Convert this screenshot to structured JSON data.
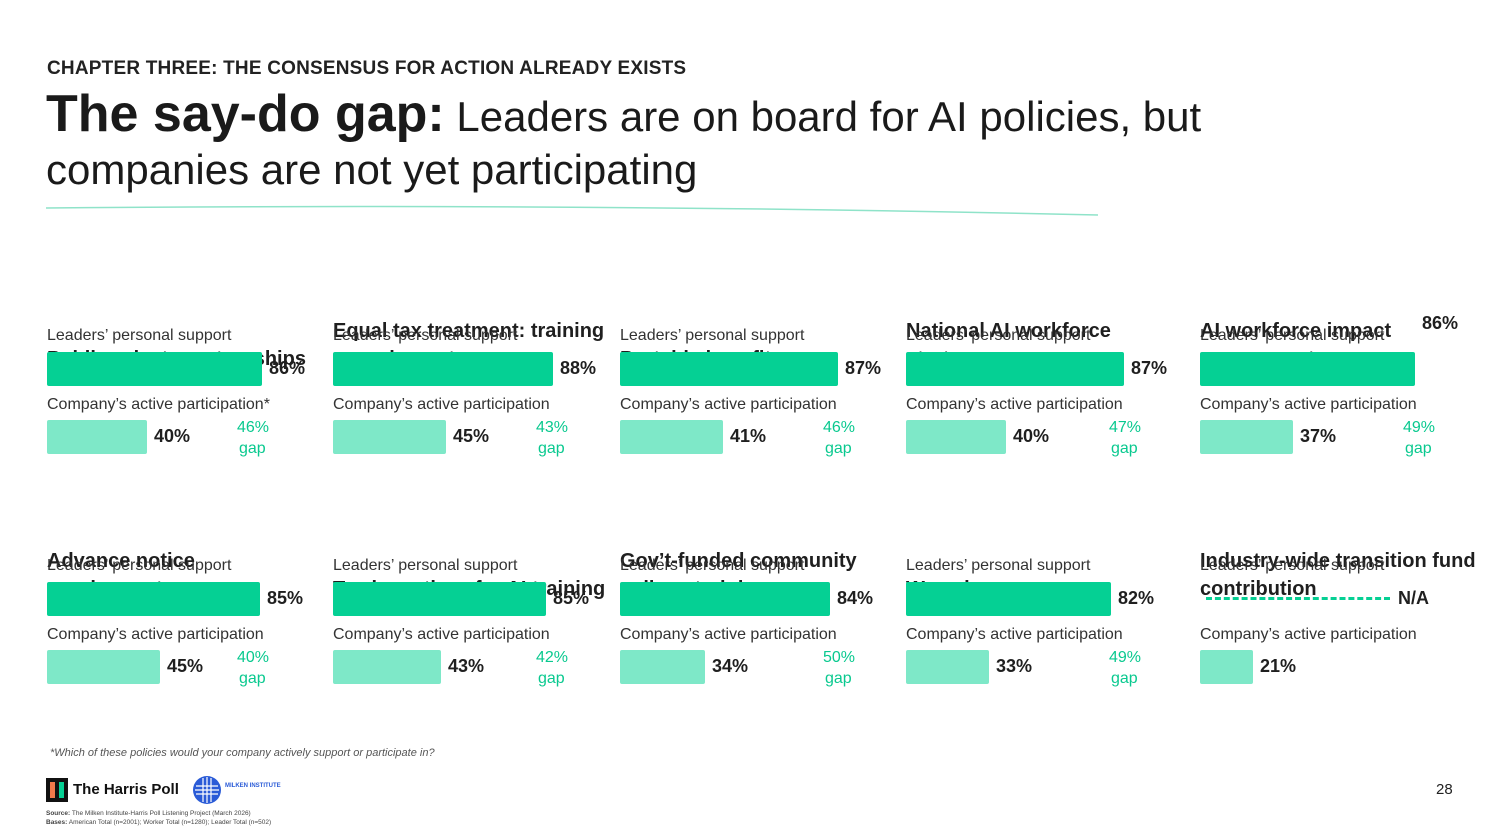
{
  "chapter": "CHAPTER THREE: THE CONSENSUS FOR ACTION ALREADY EXISTS",
  "headline": {
    "lead": "The say-do gap:",
    "rest": " Leaders are on board for AI policies, but companies are not yet participating"
  },
  "colors": {
    "support_bar": "#05d094",
    "participation_bar": "#7ee8c8",
    "gap_text": "#09c98f"
  },
  "labels": {
    "support": "Leaders’ personal support",
    "participation": "Company’s active participation",
    "participation_starred": "Company’s active participation*",
    "gap_word": "gap"
  },
  "policies": [
    {
      "title": "Public-private partnerships",
      "support": "86%",
      "participation": "40%",
      "gap": "46%"
    },
    {
      "title": "Equal tax treatment: training v. equipment",
      "support": "88%",
      "participation": "45%",
      "gap": "43%"
    },
    {
      "title": "Portable benefits",
      "support": "87%",
      "participation": "41%",
      "gap": "46%"
    },
    {
      "title": "National AI workforce strategy",
      "support": "87%",
      "participation": "40%",
      "gap": "47%"
    },
    {
      "title": "AI workforce impact assessments",
      "support": "86%",
      "participation": "37%",
      "gap": "49%"
    },
    {
      "title": "Advance notice requirements",
      "support": "85%",
      "participation": "45%",
      "gap": "40%"
    },
    {
      "title": "Tax incentives for AI training",
      "support": "85%",
      "participation": "43%",
      "gap": "42%"
    },
    {
      "title": "Gov’t-funded community college training",
      "support": "84%",
      "participation": "34%",
      "gap": "50%"
    },
    {
      "title": "Wage insurance",
      "support": "82%",
      "participation": "33%",
      "gap": "49%"
    },
    {
      "title": "Industry-wide transition fund contribution",
      "support": "N/A",
      "participation": "21%",
      "gap": ""
    }
  ],
  "footnote": "*Which of these policies would your company actively support or participate in?",
  "logos": {
    "harris": "The Harris Poll",
    "milken": "MILKEN INSTITUTE"
  },
  "source": {
    "source_label": "Source:",
    "source_text": "The Milken Institute-Harris Poll Listening Project (March 2026)",
    "bases_label": "Bases:",
    "bases_text": "American Total (n=2001); Worker Total (n=1280); Leader Total (n=502)"
  },
  "page_number": "28"
}
